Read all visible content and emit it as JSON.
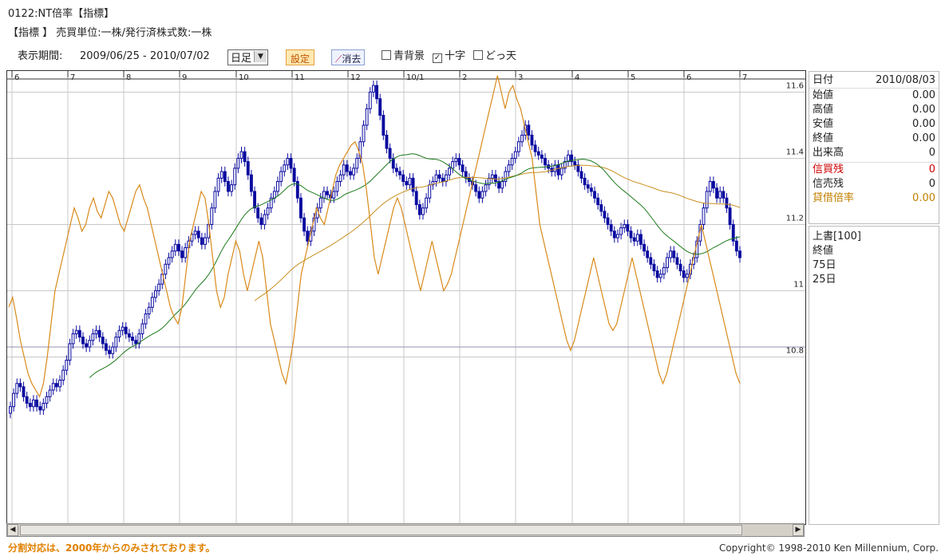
{
  "header": {
    "title": "0122:NT倍率【指標】",
    "subline": "【指標 】 売買単位:一株/発行済株式数:一株"
  },
  "toolbar": {
    "period_label": "表示期間:",
    "period_value": "2009/06/25 - 2010/07/02",
    "interval_selected": "日足",
    "set_button": "設定",
    "clear_button": "消去",
    "checkbox_blue_bg": "青背景",
    "checkbox_crosshair": "十字",
    "checkbox_dottenten": "どっ天",
    "crosshair_checked": true
  },
  "side_panel": {
    "date_label": "日付",
    "date_value": "2010/08/03",
    "ohlc": [
      {
        "label": "始値",
        "value": "0.00"
      },
      {
        "label": "高値",
        "value": "0.00"
      },
      {
        "label": "安値",
        "value": "0.00"
      },
      {
        "label": "終値",
        "value": "0.00"
      },
      {
        "label": "出来高",
        "value": "0"
      }
    ],
    "margin": [
      {
        "label": "信買残",
        "value": "0",
        "color": "#cc0000"
      },
      {
        "label": "信売残",
        "value": "0",
        "color": "#222222"
      },
      {
        "label": "貸借倍率",
        "value": "0.00",
        "color": "#c08000"
      }
    ],
    "overlay_title": "上書[100]",
    "overlay_items": [
      "終値",
      "75日",
      "25日"
    ]
  },
  "footer": {
    "note": "分割対応は、2000年からのみされております。",
    "copyright": "Copyright© 1998-2010 Ken Millennium, Corp."
  },
  "colors": {
    "up_candle": "#ffffff",
    "down_candle": "#0a0aa0",
    "candle_outline": "#0a0aa0",
    "overlay_line": "#d98a1a",
    "ma25": "#1a7a1a",
    "ma75": "#c89020",
    "grid": "#c8c8c8",
    "hline": "#9090b0"
  },
  "chart_data": {
    "type": "candlestick",
    "x_month_labels": [
      "6",
      "7",
      "8",
      "9",
      "10",
      "11",
      "12",
      "10/1",
      "2",
      "3",
      "4",
      "5",
      "6",
      "7"
    ],
    "y_ticks": [
      "11.6",
      "11.4",
      "11.2",
      "11",
      "10.8"
    ],
    "y_tick_values": [
      11.6,
      11.4,
      11.2,
      11.0,
      10.8
    ],
    "ylim": [
      10.3,
      11.63
    ],
    "reference_line": 10.83,
    "candles_close": [
      10.65,
      10.69,
      10.72,
      10.71,
      10.68,
      10.66,
      10.65,
      10.67,
      10.65,
      10.64,
      10.66,
      10.68,
      10.7,
      10.72,
      10.71,
      10.73,
      10.76,
      10.79,
      10.84,
      10.87,
      10.88,
      10.86,
      10.84,
      10.83,
      10.85,
      10.87,
      10.88,
      10.86,
      10.84,
      10.82,
      10.81,
      10.83,
      10.86,
      10.88,
      10.89,
      10.87,
      10.86,
      10.85,
      10.84,
      10.87,
      10.9,
      10.93,
      10.95,
      10.98,
      11.0,
      11.02,
      11.05,
      11.08,
      11.1,
      11.12,
      11.14,
      11.12,
      11.1,
      11.13,
      11.15,
      11.17,
      11.18,
      11.16,
      11.14,
      11.16,
      11.2,
      11.25,
      11.3,
      11.34,
      11.36,
      11.33,
      11.3,
      11.32,
      11.37,
      11.4,
      11.42,
      11.39,
      11.35,
      11.3,
      11.25,
      11.22,
      11.2,
      11.23,
      11.25,
      11.28,
      11.3,
      11.33,
      11.36,
      11.38,
      11.4,
      11.37,
      11.33,
      11.28,
      11.22,
      11.18,
      11.15,
      11.18,
      11.22,
      11.25,
      11.28,
      11.3,
      11.29,
      11.28,
      11.3,
      11.33,
      11.35,
      11.38,
      11.36,
      11.35,
      11.37,
      11.4,
      11.45,
      11.5,
      11.55,
      11.6,
      11.62,
      11.58,
      11.53,
      11.47,
      11.43,
      11.4,
      11.37,
      11.36,
      11.35,
      11.33,
      11.32,
      11.34,
      11.3,
      11.26,
      11.23,
      11.25,
      11.28,
      11.32,
      11.33,
      11.35,
      11.34,
      11.33,
      11.35,
      11.37,
      11.39,
      11.4,
      11.38,
      11.36,
      11.34,
      11.33,
      11.32,
      11.3,
      11.28,
      11.3,
      11.32,
      11.34,
      11.35,
      11.33,
      11.31,
      11.33,
      11.36,
      11.38,
      11.4,
      11.42,
      11.45,
      11.47,
      11.5,
      11.47,
      11.44,
      11.42,
      11.41,
      11.4,
      11.38,
      11.37,
      11.36,
      11.38,
      11.35,
      11.37,
      11.39,
      11.41,
      11.39,
      11.38,
      11.36,
      11.34,
      11.32,
      11.31,
      11.3,
      11.28,
      11.26,
      11.24,
      11.22,
      11.2,
      11.18,
      11.16,
      11.17,
      11.19,
      11.2,
      11.18,
      11.16,
      11.15,
      11.17,
      11.14,
      11.12,
      11.1,
      11.08,
      11.06,
      11.04,
      11.05,
      11.07,
      11.1,
      11.12,
      11.1,
      11.08,
      11.06,
      11.04,
      11.05,
      11.08,
      11.1,
      11.15,
      11.2,
      11.25,
      11.3,
      11.33,
      11.31,
      11.28,
      11.3,
      11.28,
      11.25,
      11.2,
      11.15,
      11.12,
      11.1
    ],
    "overlay_close": [
      10.95,
      10.98,
      10.92,
      10.85,
      10.8,
      10.75,
      10.72,
      10.7,
      10.68,
      10.72,
      10.8,
      10.9,
      11.0,
      11.05,
      11.1,
      11.15,
      11.2,
      11.25,
      11.22,
      11.18,
      11.2,
      11.25,
      11.28,
      11.24,
      11.22,
      11.26,
      11.3,
      11.28,
      11.24,
      11.2,
      11.18,
      11.22,
      11.26,
      11.3,
      11.32,
      11.28,
      11.25,
      11.2,
      11.15,
      11.1,
      11.05,
      11.0,
      10.95,
      10.92,
      10.9,
      10.95,
      11.05,
      11.15,
      11.2,
      11.25,
      11.3,
      11.28,
      11.2,
      11.1,
      11.0,
      10.95,
      10.98,
      11.05,
      11.1,
      11.15,
      11.12,
      11.05,
      11.0,
      11.05,
      11.1,
      11.15,
      11.1,
      11.0,
      10.9,
      10.85,
      10.8,
      10.75,
      10.72,
      10.78,
      10.85,
      10.95,
      11.05,
      11.1,
      11.15,
      11.2,
      11.25,
      11.22,
      11.2,
      11.25,
      11.3,
      11.35,
      11.38,
      11.4,
      11.42,
      11.44,
      11.45,
      11.42,
      11.38,
      11.3,
      11.2,
      11.1,
      11.05,
      11.1,
      11.15,
      11.2,
      11.25,
      11.28,
      11.25,
      11.2,
      11.15,
      11.1,
      11.05,
      11.0,
      11.05,
      11.1,
      11.15,
      11.1,
      11.05,
      11.0,
      11.02,
      11.05,
      11.1,
      11.15,
      11.2,
      11.25,
      11.3,
      11.35,
      11.4,
      11.45,
      11.5,
      11.55,
      11.6,
      11.65,
      11.6,
      11.55,
      11.6,
      11.62,
      11.58,
      11.55,
      11.5,
      11.45,
      11.4,
      11.3,
      11.2,
      11.15,
      11.1,
      11.05,
      11.0,
      10.95,
      10.9,
      10.85,
      10.82,
      10.85,
      10.9,
      10.95,
      11.0,
      11.05,
      11.1,
      11.05,
      11.0,
      10.95,
      10.9,
      10.88,
      10.9,
      10.95,
      11.0,
      11.05,
      11.1,
      11.05,
      11.0,
      10.95,
      10.9,
      10.85,
      10.8,
      10.75,
      10.72,
      10.75,
      10.8,
      10.85,
      10.9,
      10.95,
      11.0,
      11.05,
      11.1,
      11.15,
      11.2,
      11.15,
      11.1,
      11.05,
      11.0,
      10.95,
      10.9,
      10.85,
      10.8,
      10.75,
      10.72
    ],
    "series": [
      {
        "name": "終値",
        "color": "#d98a1a"
      },
      {
        "name": "75日",
        "color": "#c89020"
      },
      {
        "name": "25日",
        "color": "#1a7a1a"
      }
    ]
  }
}
